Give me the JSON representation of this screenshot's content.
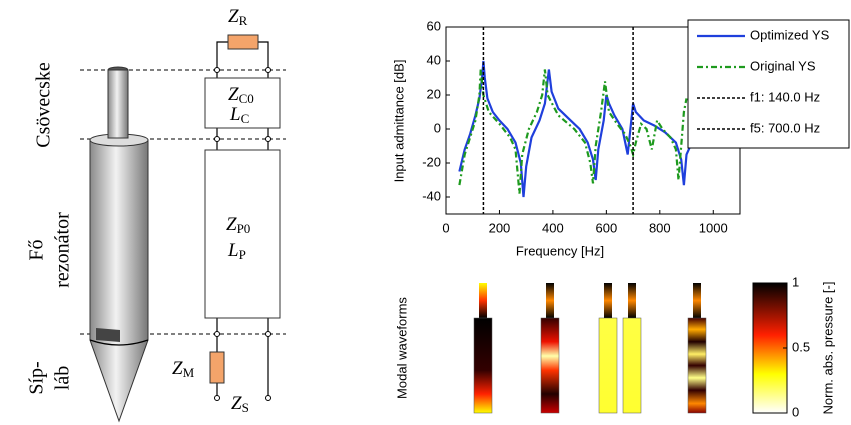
{
  "diagram": {
    "section_labels": [
      [
        "Csövecske"
      ],
      [
        "Fő",
        "rezonátor"
      ],
      [
        "Síp-",
        "láb"
      ]
    ],
    "elements": [
      {
        "main": "Z",
        "sub": "R"
      },
      {
        "main": "Z",
        "sub": "C0",
        "main2": "L",
        "sub2": "C"
      },
      {
        "main": "Z",
        "sub": "P0",
        "main2": "L",
        "sub2": "P"
      },
      {
        "main": "Z",
        "sub": "M"
      },
      {
        "main": "Z",
        "sub": "S"
      }
    ]
  },
  "chart_data": {
    "type": "line",
    "xlabel": "Frequency [Hz]",
    "ylabel": "Input admittance [dB]",
    "xlim": [
      0,
      1100
    ],
    "ylim": [
      -50,
      60
    ],
    "xticks": [
      0,
      200,
      400,
      600,
      800,
      1000
    ],
    "yticks": [
      -40,
      -20,
      0,
      20,
      40,
      60
    ],
    "series": [
      {
        "name": "Optimized YS",
        "color": "#1f3fdc",
        "x": [
          50,
          70,
          90,
          110,
          125,
          135,
          140,
          145,
          155,
          175,
          200,
          230,
          260,
          280,
          290,
          300,
          320,
          350,
          370,
          385,
          395,
          420,
          460,
          500,
          530,
          550,
          560,
          570,
          590,
          600,
          610,
          630,
          660,
          680,
          690,
          700,
          710,
          740,
          780,
          820,
          860,
          880,
          890,
          900,
          920
        ],
        "values": [
          -25,
          -12,
          -3,
          8,
          18,
          30,
          40,
          30,
          18,
          10,
          5,
          0,
          -8,
          -20,
          -40,
          -22,
          -5,
          5,
          15,
          35,
          22,
          12,
          6,
          0,
          -8,
          -18,
          -30,
          -12,
          5,
          20,
          15,
          8,
          0,
          -15,
          0,
          15,
          10,
          5,
          2,
          -2,
          -8,
          -18,
          -33,
          -15,
          -8
        ]
      },
      {
        "name": "Original YS",
        "color": "#1e9a1e",
        "x": [
          50,
          70,
          90,
          110,
          125,
          130,
          140,
          160,
          200,
          240,
          260,
          275,
          285,
          310,
          340,
          360,
          370,
          380,
          420,
          480,
          520,
          540,
          550,
          560,
          580,
          595,
          610,
          640,
          670,
          690,
          700,
          710,
          730,
          750,
          770,
          790,
          810,
          840,
          860,
          870,
          880,
          890,
          900
        ],
        "values": [
          -33,
          -15,
          -5,
          5,
          20,
          35,
          20,
          10,
          3,
          -5,
          -12,
          -38,
          -15,
          0,
          10,
          20,
          35,
          20,
          8,
          0,
          -8,
          -20,
          -32,
          -10,
          10,
          28,
          10,
          3,
          -3,
          -10,
          -15,
          -8,
          3,
          0,
          -12,
          5,
          0,
          -5,
          -12,
          -30,
          -10,
          10,
          18
        ]
      }
    ],
    "vlines": [
      {
        "name": "f1: 140.0 Hz",
        "x": 140
      },
      {
        "name": "f5: 700.0 Hz",
        "x": 700
      }
    ]
  },
  "waveforms": {
    "label": "Modal waveforms",
    "colorbar": {
      "label": "Norm. abs. pressure [-]",
      "lim": [
        0,
        1
      ],
      "ticks": [
        0,
        0.5,
        1
      ]
    }
  }
}
